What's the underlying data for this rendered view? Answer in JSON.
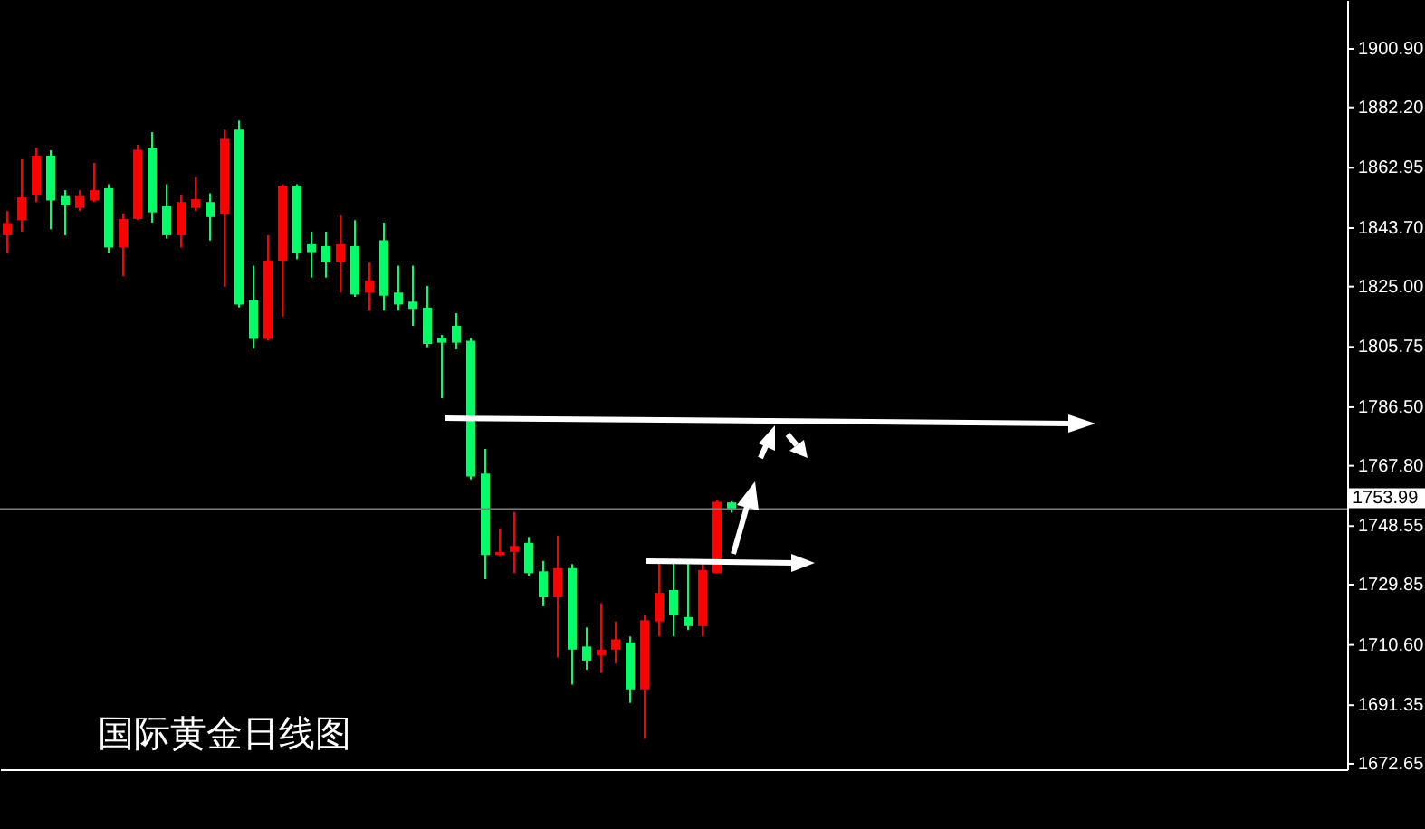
{
  "chart_data": {
    "type": "candlestick",
    "categories": [
      null,
      null,
      null,
      null,
      null,
      null,
      null,
      null,
      null,
      null,
      null,
      null,
      null,
      null,
      null,
      null,
      null,
      null,
      null,
      null,
      null,
      null,
      null,
      null,
      null,
      null,
      null,
      null,
      null,
      null,
      null,
      null,
      null,
      null,
      null,
      null,
      null,
      null,
      null,
      null,
      null,
      null,
      null,
      null,
      null,
      null,
      null,
      null,
      null,
      null,
      null,
      null,
      null,
      null,
      null,
      null,
      null,
      null,
      null,
      null,
      null,
      null,
      null,
      null,
      null,
      null,
      null,
      null,
      null,
      null,
      null,
      null,
      null,
      null,
      null,
      null,
      null,
      null,
      null,
      null,
      null,
      null,
      null,
      null,
      null,
      null,
      null,
      null,
      null,
      null,
      null,
      null,
      null
    ],
    "ohlc": [
      [
        1841.4,
        1849.1,
        1835.6,
        1845.3
      ],
      [
        1846.2,
        1865.7,
        1842.5,
        1853.5
      ],
      [
        1854.1,
        1869.3,
        1852.0,
        1866.8
      ],
      [
        1866.8,
        1868.5,
        1843.3,
        1852.5
      ],
      [
        1853.9,
        1855.8,
        1841.4,
        1851.0
      ],
      [
        1850.1,
        1855.8,
        1849.1,
        1853.9
      ],
      [
        1852.5,
        1864.5,
        1852.0,
        1855.8
      ],
      [
        1856.4,
        1857.7,
        1835.6,
        1837.5
      ],
      [
        1837.5,
        1848.3,
        1828.3,
        1846.6
      ],
      [
        1846.6,
        1870.3,
        1846.2,
        1868.7
      ],
      [
        1869.3,
        1874.3,
        1845.4,
        1848.7
      ],
      [
        1850.6,
        1857.7,
        1840.4,
        1841.4
      ],
      [
        1841.4,
        1854.1,
        1837.5,
        1852.0
      ],
      [
        1850.1,
        1859.9,
        1849.1,
        1852.9
      ],
      [
        1852.0,
        1854.8,
        1839.7,
        1847.2
      ],
      [
        1848.1,
        1875.1,
        1825.0,
        1872.2
      ],
      [
        1875.1,
        1878.0,
        1818.3,
        1819.3
      ],
      [
        1820.6,
        1831.7,
        1805.2,
        1808.3
      ],
      [
        1808.3,
        1841.4,
        1807.7,
        1833.3
      ],
      [
        1833.3,
        1857.7,
        1815.4,
        1857.2
      ],
      [
        1857.2,
        1857.7,
        1833.7,
        1835.6
      ],
      [
        1838.5,
        1842.5,
        1827.9,
        1836.0
      ],
      [
        1837.9,
        1842.5,
        1827.9,
        1832.7
      ],
      [
        1832.7,
        1847.7,
        1823.1,
        1838.5
      ],
      [
        1837.9,
        1846.2,
        1821.7,
        1822.5
      ],
      [
        1823.1,
        1832.7,
        1817.3,
        1827.0
      ],
      [
        1839.8,
        1845.4,
        1817.3,
        1822.1
      ],
      [
        1823.1,
        1831.7,
        1817.3,
        1819.3
      ],
      [
        1820.2,
        1831.7,
        1812.5,
        1817.9
      ],
      [
        1818.3,
        1825.2,
        1805.7,
        1806.7
      ],
      [
        1808.6,
        1809.6,
        1789.4,
        1807.1
      ],
      [
        1812.5,
        1816.5,
        1805.0,
        1807.1
      ],
      [
        1807.7,
        1808.6,
        1763.4,
        1764.4
      ],
      [
        1765.3,
        1773.2,
        1731.6,
        1739.3
      ],
      [
        1739.3,
        1747.8,
        1739.0,
        1740.3
      ],
      [
        1740.3,
        1753.0,
        1733.5,
        1742.2
      ],
      [
        1743.2,
        1745.1,
        1732.6,
        1733.5
      ],
      [
        1734.1,
        1737.4,
        1722.9,
        1725.8
      ],
      [
        1725.8,
        1745.5,
        1706.6,
        1735.1
      ],
      [
        1735.1,
        1736.4,
        1697.9,
        1709.1
      ],
      [
        1710.1,
        1716.2,
        1702.7,
        1705.6
      ],
      [
        1707.2,
        1723.9,
        1701.7,
        1709.1
      ],
      [
        1709.1,
        1718.1,
        1704.6,
        1712.4
      ],
      [
        1711.4,
        1713.3,
        1692.1,
        1696.4
      ],
      [
        1696.4,
        1720.0,
        1680.6,
        1718.5
      ],
      [
        1718.1,
        1737.4,
        1713.3,
        1727.2
      ],
      [
        1728.1,
        1737.4,
        1713.3,
        1720.0
      ],
      [
        1719.5,
        1737.4,
        1715.3,
        1716.6
      ],
      [
        1716.6,
        1737.4,
        1713.3,
        1734.5
      ],
      [
        1733.5,
        1757.0,
        1733.5,
        1756.3
      ],
      [
        1756.1,
        1756.5,
        1752.8,
        1754.1
      ],
      null,
      null,
      null,
      null,
      null,
      null,
      null,
      null,
      null,
      null,
      null,
      null,
      null,
      null,
      null,
      null,
      null,
      null,
      null,
      null,
      null,
      null,
      null,
      null,
      null,
      null,
      null,
      null,
      null,
      null,
      null,
      null,
      null,
      null,
      null,
      null,
      null,
      null,
      null,
      null,
      null,
      null
    ],
    "ylim": [
      1670.9,
      1916.5
    ],
    "yticks": [
      {
        "value": 1900.9,
        "label": "1900.90"
      },
      {
        "value": 1882.2,
        "label": "1882.20"
      },
      {
        "value": 1862.95,
        "label": "1862.95"
      },
      {
        "value": 1843.7,
        "label": "1843.70"
      },
      {
        "value": 1825,
        "label": "1825.00"
      },
      {
        "value": 1805.75,
        "label": "1805.75"
      },
      {
        "value": 1786.5,
        "label": "1786.50"
      },
      {
        "value": 1767.8,
        "label": "1767.80"
      },
      {
        "value": 1748.55,
        "label": "1748.55"
      },
      {
        "value": 1729.85,
        "label": "1729.85"
      },
      {
        "value": 1710.6,
        "label": "1710.60"
      },
      {
        "value": 1691.35,
        "label": "1691.35"
      },
      {
        "value": 1672.65,
        "label": "1672.65"
      }
    ],
    "ref_lines": [
      {
        "axis": "y",
        "value": 1753.99,
        "label": "1753.99",
        "color": "#808080"
      }
    ],
    "annotations": [
      "国际黄金日线图"
    ],
    "tick_labels": "y",
    "grid": false
  }
}
